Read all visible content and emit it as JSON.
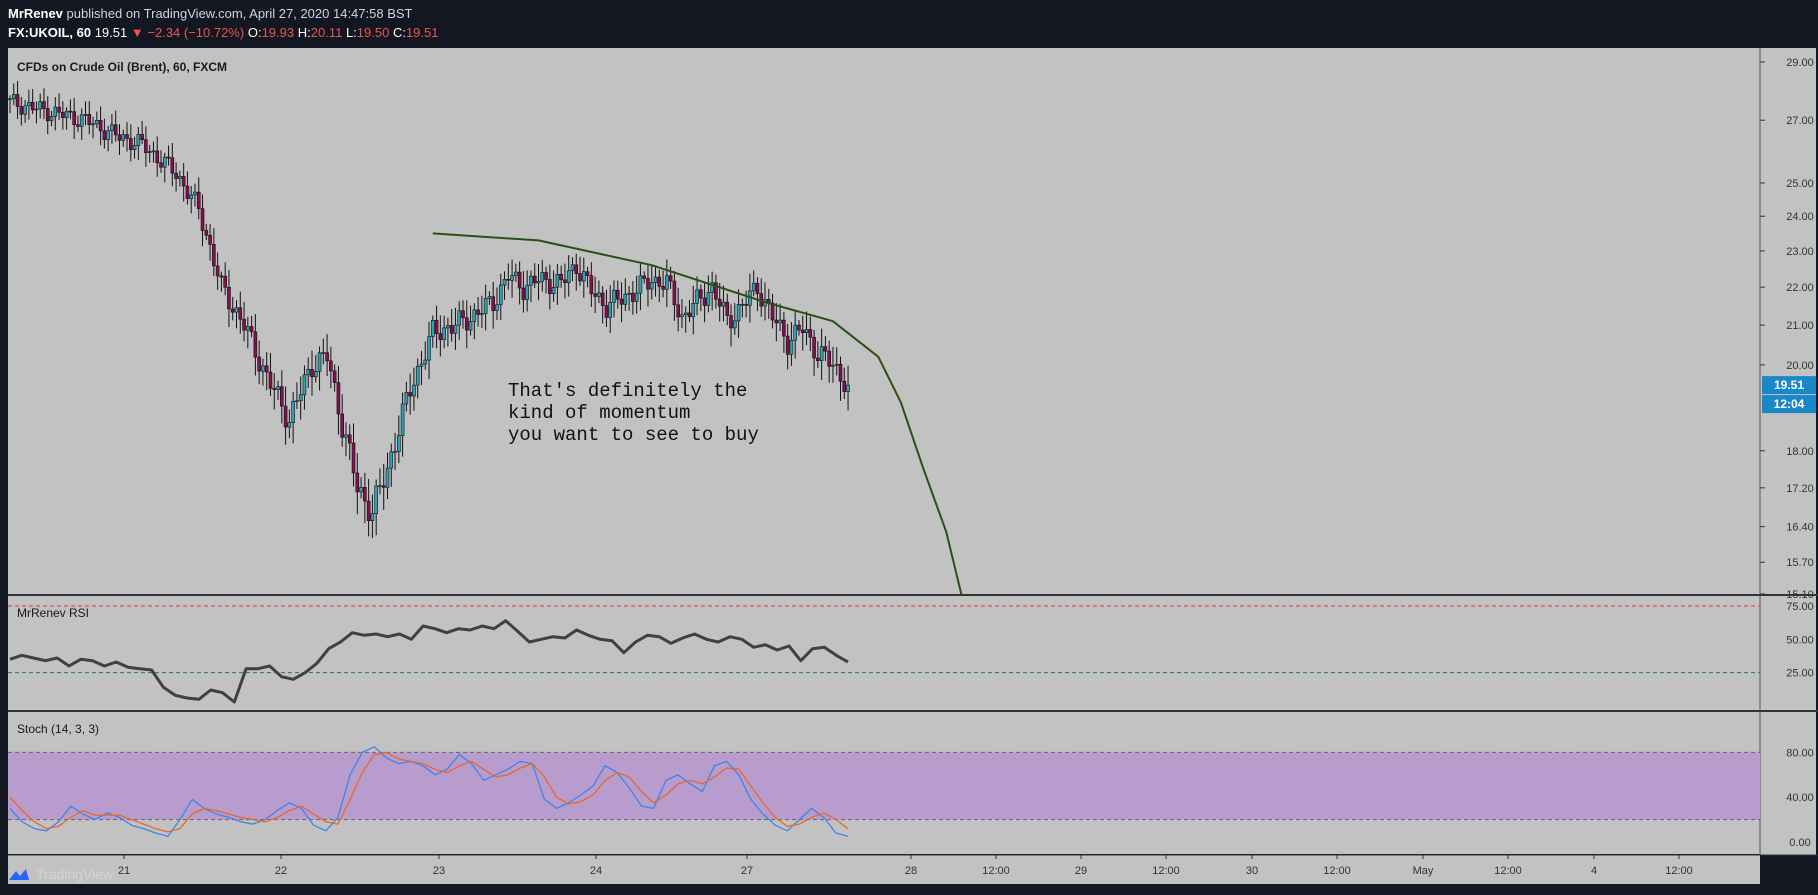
{
  "header": {
    "author": "MrRenev",
    "published": "published on TradingView.com, April 27, 2020 14:47:58 BST",
    "symbol": "FX:UKOIL, 60",
    "last": "19.51",
    "change": "▼ −2.34 (−10.72%)",
    "o_label": "O:",
    "o_val": "19.93",
    "h_label": "H:",
    "h_val": "20.11",
    "l_label": "L:",
    "l_val": "19.50",
    "c_label": "C:",
    "c_val": "19.51"
  },
  "footer": {
    "brand": "TradingView"
  },
  "colors": {
    "background": "#131722",
    "pane": "#c2c2c2",
    "up": "#2ea2b8",
    "down": "#880e4f",
    "curve": "#2c4f14",
    "rsi": "#404040",
    "stoch_k": "#3d86e8",
    "stoch_d": "#e8692a",
    "stoch_band": "#b79ccd",
    "price_tag": "#1a88c7"
  },
  "chart_data": [
    {
      "type": "candlestick",
      "title": "CFDs on Crude Oil (Brent), 60, FXCM",
      "y_scale": "log",
      "ylim": [
        15.1,
        29.5
      ],
      "y_ticks": [
        "29.00",
        "27.00",
        "25.00",
        "24.00",
        "23.00",
        "22.00",
        "21.00",
        "20.00",
        "18.00",
        "17.20",
        "16.40",
        "15.70",
        "15.10"
      ],
      "x_ticks": [
        "21",
        "22",
        "23",
        "24",
        "27",
        "28",
        "12:00",
        "29",
        "12:00",
        "30",
        "12:00",
        "May",
        "12:00",
        "4",
        "12:00"
      ],
      "last_price": "19.51",
      "countdown": "12:04",
      "close_path": [
        [
          0,
          27.6
        ],
        [
          10,
          27.3
        ],
        [
          20,
          27.0
        ],
        [
          28,
          26.5
        ],
        [
          35,
          26.2
        ],
        [
          44,
          25.3
        ],
        [
          50,
          24.2
        ],
        [
          56,
          22.0
        ],
        [
          62,
          21.0
        ],
        [
          68,
          19.7
        ],
        [
          74,
          18.7
        ],
        [
          80,
          20.0
        ],
        [
          84,
          20.2
        ],
        [
          88,
          18.6
        ],
        [
          92,
          17.2
        ],
        [
          96,
          16.7
        ],
        [
          100,
          17.6
        ],
        [
          106,
          19.4
        ],
        [
          112,
          20.8
        ],
        [
          118,
          21.0
        ],
        [
          122,
          21.2
        ],
        [
          128,
          21.6
        ],
        [
          132,
          22.3
        ],
        [
          136,
          22.0
        ],
        [
          140,
          22.2
        ],
        [
          146,
          22.1
        ],
        [
          150,
          22.6
        ],
        [
          154,
          21.9
        ],
        [
          158,
          21.5
        ],
        [
          164,
          21.8
        ],
        [
          170,
          22.2
        ],
        [
          174,
          22.1
        ],
        [
          178,
          21.2
        ],
        [
          182,
          21.6
        ],
        [
          186,
          22.0
        ],
        [
          190,
          21.1
        ],
        [
          194,
          21.5
        ],
        [
          198,
          22.0
        ],
        [
          202,
          21.2
        ],
        [
          206,
          20.6
        ],
        [
          210,
          20.9
        ],
        [
          214,
          20.3
        ],
        [
          218,
          20.0
        ],
        [
          222,
          19.51
        ]
      ],
      "annotation": [
        "That's definitely the",
        "kind of momentum",
        "you want to see to buy"
      ],
      "curve_path": [
        [
          112,
          23.5
        ],
        [
          140,
          23.3
        ],
        [
          170,
          22.6
        ],
        [
          200,
          21.6
        ],
        [
          218,
          21.1
        ],
        [
          230,
          20.2
        ],
        [
          236,
          19.1
        ],
        [
          242,
          17.6
        ],
        [
          248,
          16.3
        ],
        [
          252,
          15.1
        ]
      ]
    },
    {
      "type": "line",
      "title": "MrRenev RSI",
      "ylim": [
        0,
        75
      ],
      "y_ticks": [
        "75.00",
        "50.00",
        "25.00"
      ],
      "levels": [
        75,
        25
      ],
      "values": [
        35,
        38,
        36,
        34,
        36,
        30,
        35,
        34,
        30,
        33,
        29,
        28,
        27,
        14,
        8,
        6,
        5,
        12,
        10,
        3,
        28,
        28,
        30,
        22,
        20,
        25,
        32,
        43,
        48,
        55,
        53,
        54,
        52,
        54,
        50,
        60,
        58,
        55,
        58,
        57,
        60,
        58,
        64,
        56,
        48,
        50,
        52,
        51,
        57,
        53,
        50,
        49,
        40,
        48,
        53,
        52,
        47,
        51,
        54,
        50,
        48,
        52,
        50,
        44,
        46,
        42,
        45,
        34,
        43,
        44,
        38,
        33
      ]
    },
    {
      "type": "line",
      "title": "Stoch (14, 3, 3)",
      "ylim": [
        0,
        100
      ],
      "y_ticks": [
        "80.00",
        "40.00",
        "0.00"
      ],
      "levels": [
        80,
        20
      ],
      "series": [
        {
          "values": [
            30,
            18,
            12,
            10,
            18,
            32,
            25,
            20,
            26,
            22,
            15,
            12,
            8,
            5,
            20,
            38,
            30,
            25,
            22,
            18,
            16,
            20,
            28,
            35,
            30,
            15,
            10,
            22,
            60,
            80,
            85,
            75,
            70,
            72,
            68,
            60,
            65,
            78,
            70,
            55,
            60,
            65,
            72,
            70,
            38,
            30,
            35,
            42,
            50,
            68,
            62,
            48,
            32,
            30,
            55,
            60,
            52,
            45,
            68,
            72,
            60,
            38,
            25,
            15,
            10,
            20,
            30,
            22,
            8,
            5
          ]
        },
        {
          "values": [
            40,
            28,
            18,
            12,
            14,
            22,
            28,
            24,
            24,
            24,
            20,
            16,
            12,
            9,
            12,
            25,
            30,
            28,
            25,
            22,
            20,
            18,
            22,
            28,
            32,
            25,
            18,
            16,
            38,
            62,
            78,
            80,
            74,
            72,
            70,
            65,
            62,
            68,
            72,
            65,
            58,
            60,
            66,
            70,
            58,
            40,
            34,
            36,
            42,
            55,
            62,
            58,
            45,
            35,
            42,
            52,
            55,
            52,
            58,
            66,
            65,
            50,
            35,
            22,
            14,
            16,
            22,
            26,
            20,
            12
          ]
        }
      ]
    }
  ]
}
